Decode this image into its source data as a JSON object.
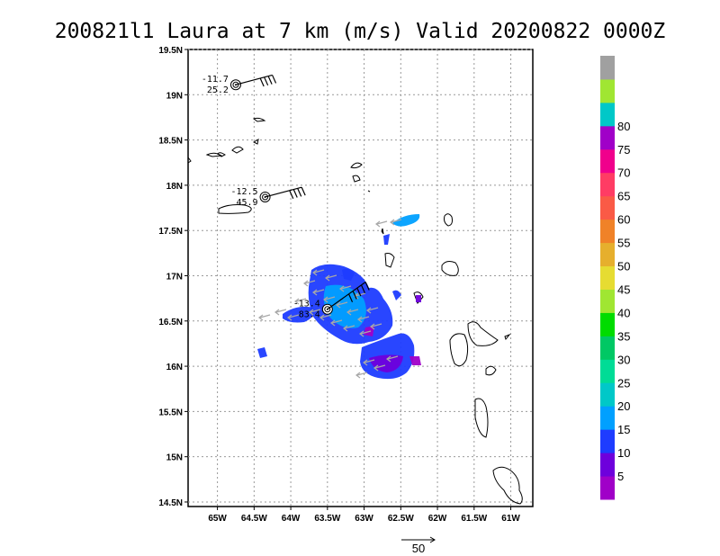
{
  "chart_data": {
    "type": "scatter",
    "title": "200821l1 Laura at 7 km (m/s) Valid 20200822 0000Z",
    "xlim": [
      -65.4,
      -60.7
    ],
    "ylim": [
      14.45,
      19.5
    ],
    "grid": true,
    "x_ticks": [
      {
        "value": -65.0,
        "label": "65W"
      },
      {
        "value": -64.5,
        "label": "64.5W"
      },
      {
        "value": -64.0,
        "label": "64W"
      },
      {
        "value": -63.5,
        "label": "63.5W"
      },
      {
        "value": -63.0,
        "label": "63W"
      },
      {
        "value": -62.5,
        "label": "62.5W"
      },
      {
        "value": -62.0,
        "label": "62W"
      },
      {
        "value": -61.5,
        "label": "61.5W"
      },
      {
        "value": -61.0,
        "label": "61W"
      }
    ],
    "y_ticks": [
      {
        "value": 19.5,
        "label": "19.5N"
      },
      {
        "value": 19.0,
        "label": "19N"
      },
      {
        "value": 18.5,
        "label": "18.5N"
      },
      {
        "value": 18.0,
        "label": "18N"
      },
      {
        "value": 17.5,
        "label": "17.5N"
      },
      {
        "value": 17.0,
        "label": "17N"
      },
      {
        "value": 16.5,
        "label": "16.5N"
      },
      {
        "value": 16.0,
        "label": "16N"
      },
      {
        "value": 15.5,
        "label": "15.5N"
      },
      {
        "value": 15.0,
        "label": "15N"
      },
      {
        "value": 14.5,
        "label": "14.5N"
      }
    ],
    "colorbar": {
      "labels": [
        "5",
        "10",
        "15",
        "20",
        "25",
        "30",
        "35",
        "40",
        "45",
        "50",
        "55",
        "60",
        "65",
        "70",
        "75",
        "80"
      ],
      "colors": [
        "#a000c8",
        "#6e00dc",
        "#1e3cff",
        "#00a0ff",
        "#00c8c8",
        "#00dc96",
        "#00c864",
        "#00dc00",
        "#a0e632",
        "#e6dc32",
        "#e6af2d",
        "#f08228",
        "#fa5a46",
        "#ff3c64",
        "#f0008c",
        "#a000c8",
        "#00c8c8",
        "#a0e632",
        "#a0a0a0"
      ]
    },
    "stations": [
      {
        "lon": -64.75,
        "lat": 19.11,
        "top": "-11.7",
        "bottom": "25.2"
      },
      {
        "lon": -64.35,
        "lat": 17.87,
        "top": "-12.5",
        "bottom": "45.9"
      },
      {
        "lon": -63.5,
        "lat": 16.63,
        "top": "-13.4",
        "bottom": "83.4"
      }
    ],
    "vector_scale_label": "50"
  }
}
